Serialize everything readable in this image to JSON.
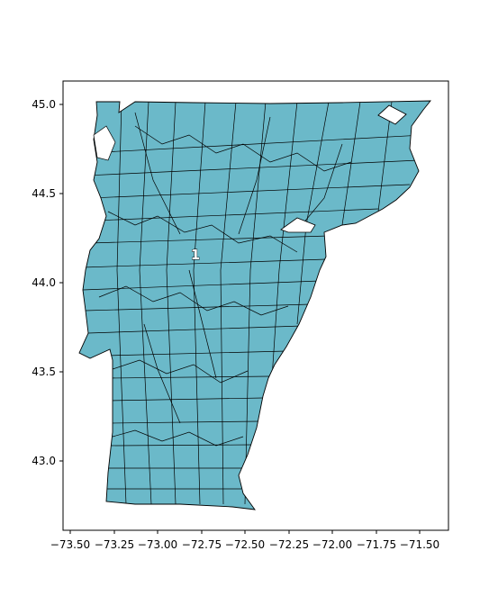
{
  "map": {
    "fill_color": "#6bb9c9",
    "edge_color": "#000000",
    "background_color": "#ffffff",
    "region_label": "1",
    "x_ticks": [
      "−73.50",
      "−73.25",
      "−73.00",
      "−72.75",
      "−72.50",
      "−72.25",
      "−72.00",
      "−71.75",
      "−71.50"
    ],
    "y_ticks": [
      "45.0",
      "44.5",
      "44.0",
      "43.5",
      "43.0"
    ]
  },
  "chart_data": {
    "type": "map",
    "title": "",
    "xlabel": "",
    "ylabel": "",
    "xlim": [
      -73.55,
      -71.42
    ],
    "ylim": [
      42.62,
      45.13
    ],
    "x_ticks": [
      -73.5,
      -73.25,
      -73.0,
      -72.75,
      -72.5,
      -72.25,
      -72.0,
      -71.75,
      -71.5
    ],
    "y_ticks": [
      45.0,
      44.5,
      44.0,
      43.5,
      43.0
    ],
    "annotations": [
      {
        "text": "1",
        "lon": -72.78,
        "lat": 44.16
      }
    ],
    "grid": false,
    "legend": "none"
  }
}
